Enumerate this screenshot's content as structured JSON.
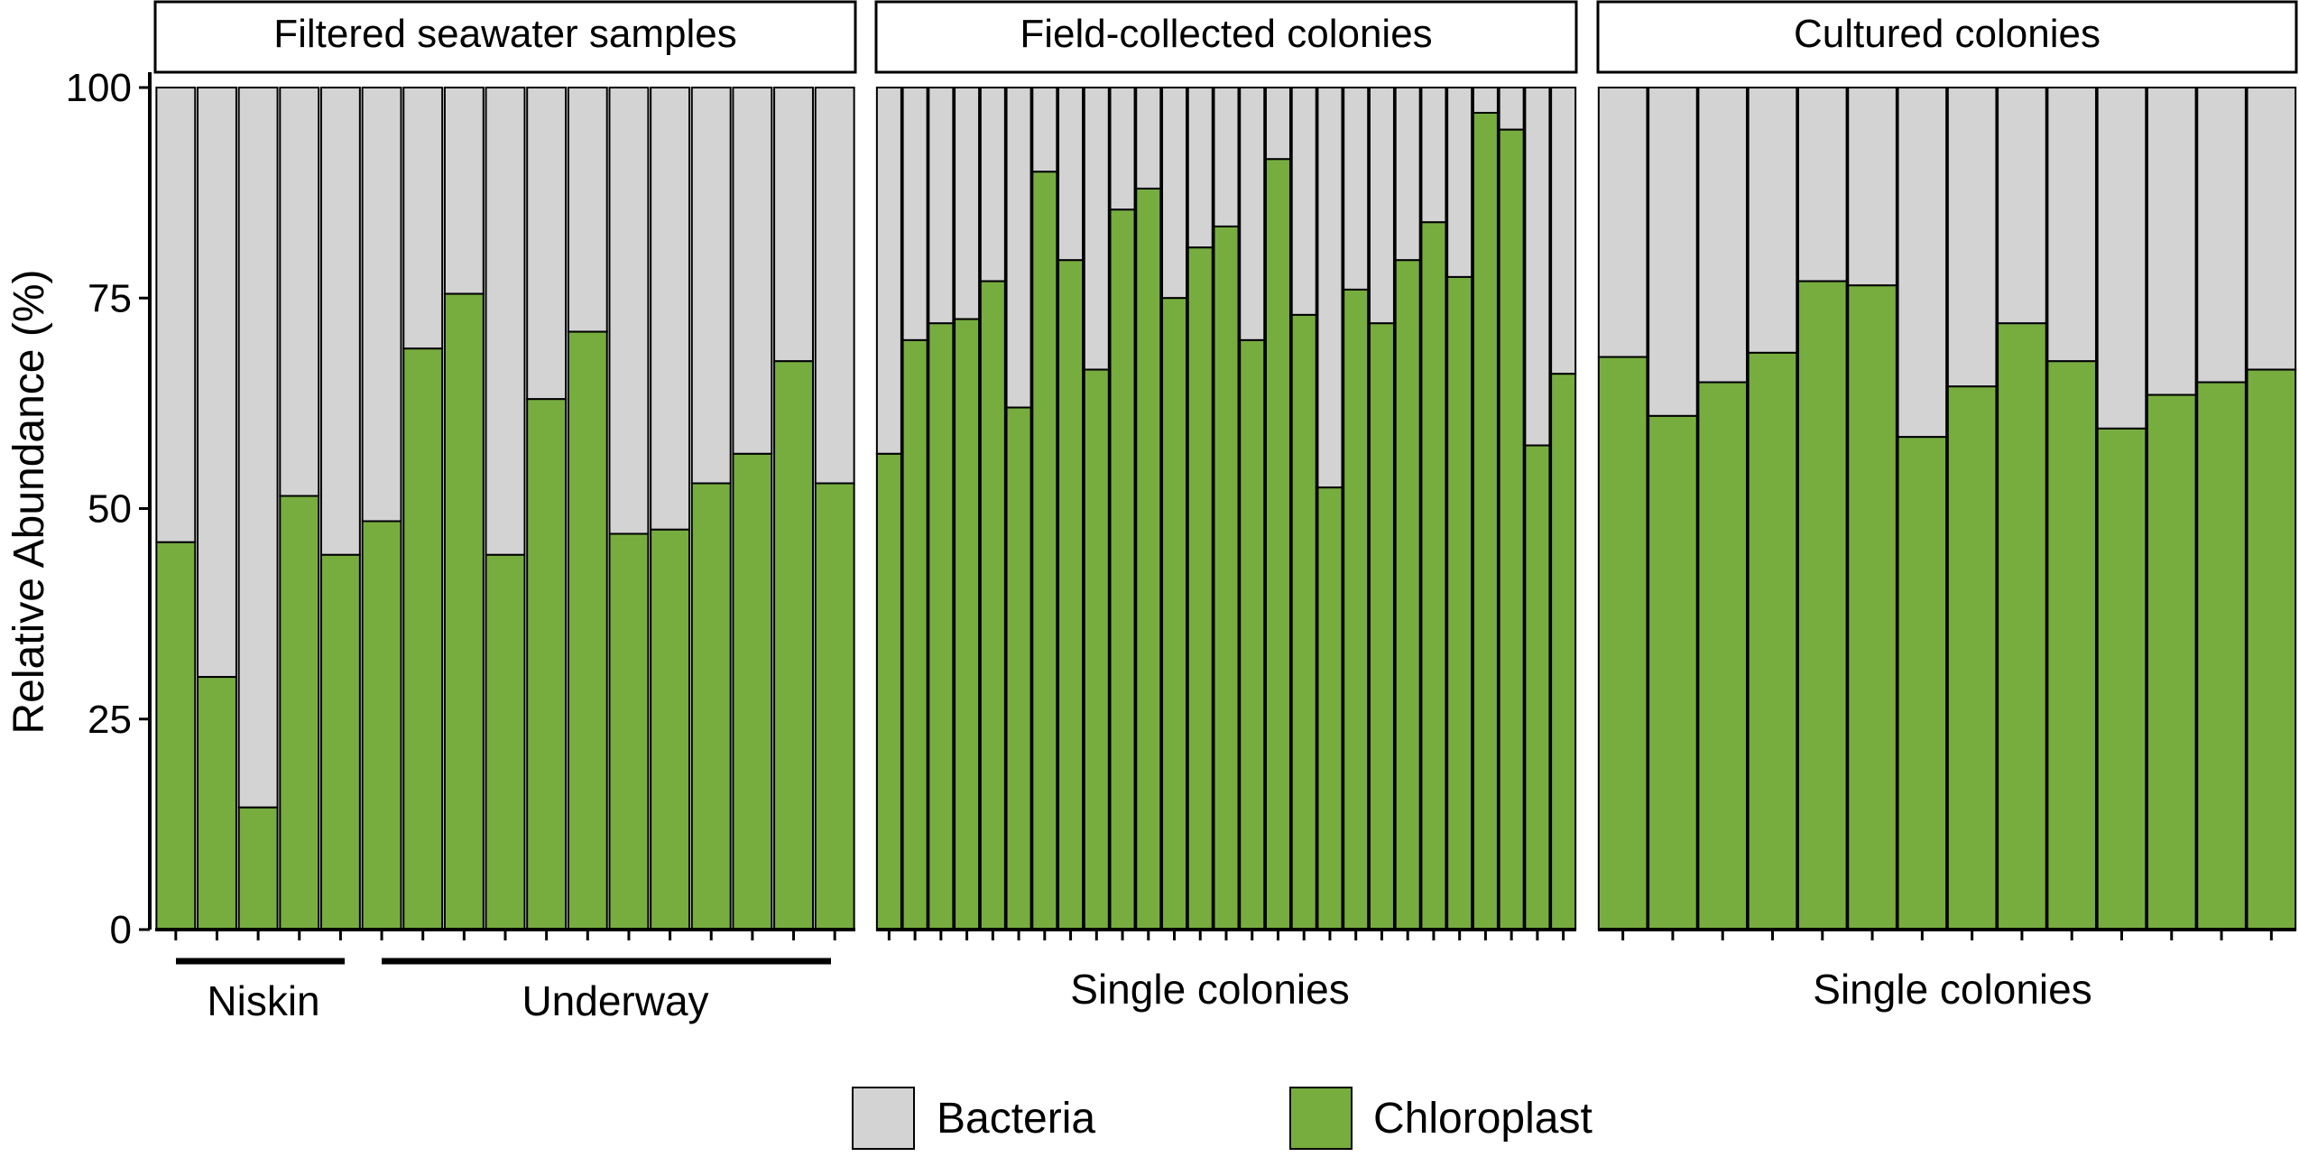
{
  "chart_data": {
    "type": "bar",
    "stacked": true,
    "ylabel": "Relative Abundance (%)",
    "ylim": [
      0,
      100
    ],
    "yticks": [
      0,
      25,
      50,
      75,
      100
    ],
    "grid": false,
    "legend_position": "bottom",
    "series_order": [
      "Chloroplast",
      "Bacteria"
    ],
    "colors": {
      "Bacteria": "#d3d3d3",
      "Chloroplast": "#77ad3f",
      "outline": "#000000"
    },
    "legend": [
      {
        "label": "Bacteria",
        "color": "#d3d3d3"
      },
      {
        "label": "Chloroplast",
        "color": "#77ad3f"
      }
    ],
    "panels": [
      {
        "title": "Filtered seawater samples",
        "chloroplast": [
          46,
          30,
          14.5,
          51.5,
          44.5,
          48.5,
          69,
          75.5,
          44.5,
          63,
          71,
          47,
          47.5,
          53,
          56.5,
          67.5,
          53
        ],
        "groups": [
          {
            "label": "Niskin",
            "from": 0,
            "to": 4
          },
          {
            "label": "Underway",
            "from": 5,
            "to": 16
          }
        ]
      },
      {
        "title": "Field-collected colonies",
        "chloroplast": [
          56.5,
          70,
          72,
          72.5,
          77,
          62,
          90,
          79.5,
          66.5,
          85.5,
          88,
          75,
          81,
          83.5,
          70,
          91.5,
          73,
          52.5,
          76,
          72,
          79.5,
          84,
          77.5,
          97,
          95,
          57.5,
          66
        ],
        "groups": [
          {
            "label": "Single colonies",
            "from": 0,
            "to": 26
          }
        ]
      },
      {
        "title": "Cultured colonies",
        "chloroplast": [
          68,
          61,
          65,
          68.5,
          77,
          76.5,
          58.5,
          64.5,
          72,
          67.5,
          59.5,
          63.5,
          65,
          66.5
        ],
        "groups": [
          {
            "label": "Single colonies",
            "from": 0,
            "to": 13
          }
        ]
      }
    ]
  }
}
